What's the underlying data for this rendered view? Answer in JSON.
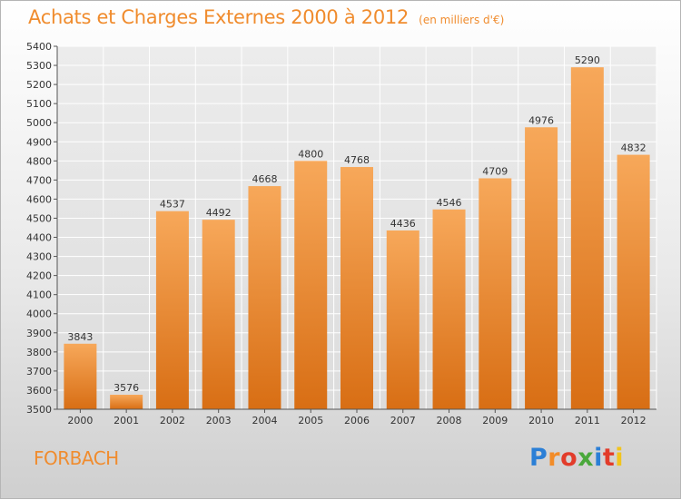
{
  "header": {
    "title": "Achats et Charges Externes 2000 à 2012",
    "unit_note": "(en milliers d'€)"
  },
  "footer": {
    "commune": "FORBACH",
    "logo_text": "Proxiti",
    "logo_colors": [
      "#2b7fd6",
      "#f28c28",
      "#e23c2a",
      "#4aa83b",
      "#2b7fd6",
      "#e23c2a",
      "#f2c41c"
    ]
  },
  "chart_data": {
    "type": "bar",
    "title": "Achats et Charges Externes 2000 à 2012",
    "unit": "(en milliers d'€)",
    "xlabel": "",
    "ylabel": "",
    "categories": [
      "2000",
      "2001",
      "2002",
      "2003",
      "2004",
      "2005",
      "2006",
      "2007",
      "2008",
      "2009",
      "2010",
      "2011",
      "2012"
    ],
    "values": [
      3843,
      3576,
      4537,
      4492,
      4668,
      4800,
      4768,
      4436,
      4546,
      4709,
      4976,
      5290,
      4832
    ],
    "ylim": [
      3500,
      5400
    ],
    "yticks": [
      3500,
      3600,
      3700,
      3800,
      3900,
      4000,
      4100,
      4200,
      4300,
      4400,
      4500,
      4600,
      4700,
      4800,
      4900,
      5000,
      5100,
      5200,
      5300,
      5400
    ],
    "grid": true,
    "data_labels": true,
    "bar_color_top": "#f7a85a",
    "bar_color_bottom": "#d86e14",
    "grid_color": "#ffffff",
    "text_color": "#333333"
  }
}
